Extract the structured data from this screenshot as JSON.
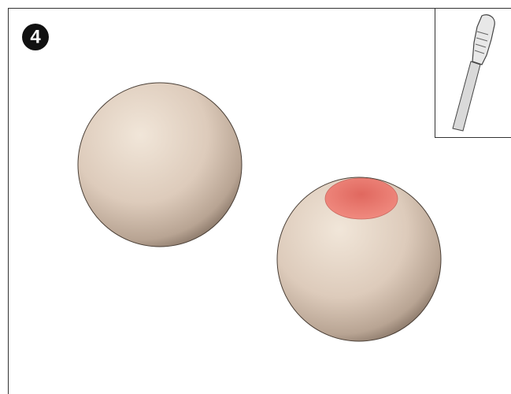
{
  "step": {
    "number": "4"
  }
}
